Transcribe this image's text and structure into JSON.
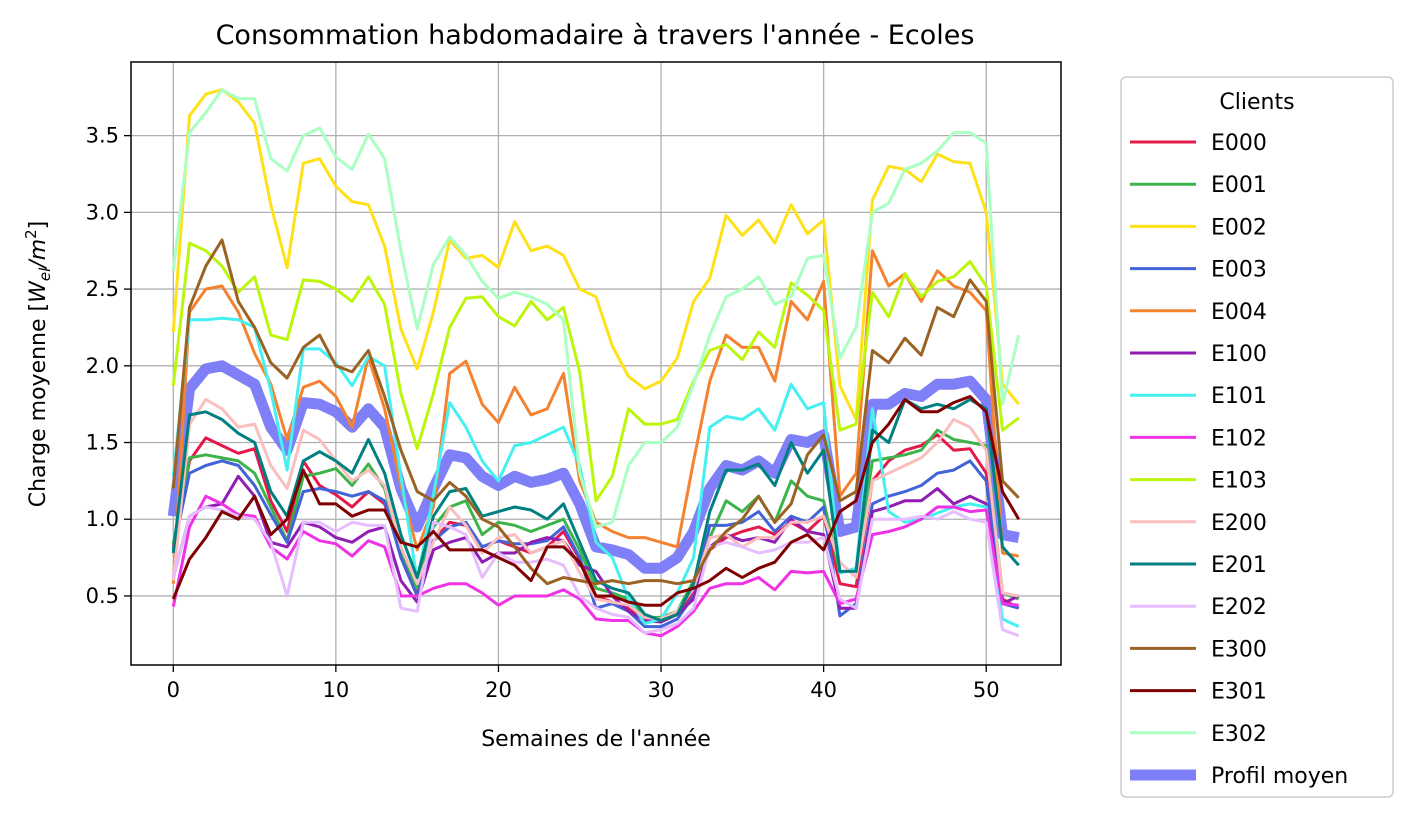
{
  "chart_data": {
    "type": "line",
    "title": "Consommation habdomadaire à travers l'année - Ecoles",
    "xlabel": "Semaines de l'année",
    "ylabel_main": "Charge moyenne [",
    "ylabel_W": "W",
    "ylabel_el": "el",
    "ylabel_m": "/m",
    "ylabel_sup": "2",
    "ylabel_end": "]",
    "xlim": [
      -2.6,
      54.6
    ],
    "ylim": [
      0.05,
      3.98
    ],
    "xticks": [
      0,
      10,
      20,
      30,
      40,
      50
    ],
    "xtick_labels": [
      "0",
      "10",
      "20",
      "30",
      "40",
      "50"
    ],
    "yticks": [
      0.5,
      1.0,
      1.5,
      2.0,
      2.5,
      3.0,
      3.5
    ],
    "ytick_labels": [
      "0.5",
      "1.0",
      "1.5",
      "2.0",
      "2.5",
      "3.0",
      "3.5"
    ],
    "grid": true,
    "legend": {
      "title": "Clients",
      "placement": "outside-right"
    },
    "x": [
      0,
      1,
      2,
      3,
      4,
      5,
      6,
      7,
      8,
      9,
      10,
      11,
      12,
      13,
      14,
      15,
      16,
      17,
      18,
      19,
      20,
      21,
      22,
      23,
      24,
      25,
      26,
      27,
      28,
      29,
      30,
      31,
      32,
      33,
      34,
      35,
      36,
      37,
      38,
      39,
      40,
      41,
      42,
      43,
      44,
      45,
      46,
      47,
      48,
      49,
      50,
      51,
      52
    ],
    "series": [
      {
        "name": "E000",
        "color": "#e6194b",
        "width": 1.5,
        "values": [
          0.82,
          1.38,
          1.53,
          1.48,
          1.43,
          1.46,
          1.12,
          0.92,
          1.38,
          1.22,
          1.16,
          1.08,
          1.18,
          1.1,
          0.78,
          0.52,
          0.86,
          0.98,
          0.96,
          0.82,
          0.86,
          0.82,
          0.78,
          0.82,
          0.92,
          0.74,
          0.5,
          0.46,
          0.42,
          0.36,
          0.35,
          0.38,
          0.52,
          0.8,
          0.88,
          0.92,
          0.95,
          0.9,
          0.98,
          0.92,
          1.02,
          0.58,
          0.56,
          1.25,
          1.38,
          1.45,
          1.48,
          1.55,
          1.45,
          1.46,
          1.3,
          0.48,
          0.42
        ]
      },
      {
        "name": "E001",
        "color": "#3cb44b",
        "width": 1.5,
        "values": [
          0.84,
          1.4,
          1.42,
          1.4,
          1.38,
          1.3,
          1.08,
          0.86,
          1.28,
          1.3,
          1.33,
          1.22,
          1.36,
          1.2,
          0.8,
          0.55,
          0.95,
          1.08,
          1.12,
          0.9,
          0.98,
          0.96,
          0.92,
          0.96,
          1.0,
          0.8,
          0.55,
          0.52,
          0.48,
          0.36,
          0.36,
          0.4,
          0.6,
          0.88,
          1.12,
          1.05,
          1.15,
          0.98,
          1.25,
          1.15,
          1.12,
          0.65,
          0.68,
          1.38,
          1.4,
          1.42,
          1.45,
          1.58,
          1.52,
          1.5,
          1.48,
          0.52,
          0.48
        ]
      },
      {
        "name": "E002",
        "color": "#ffe119",
        "width": 1.5,
        "values": [
          2.22,
          3.63,
          3.77,
          3.8,
          3.72,
          3.58,
          3.05,
          2.64,
          3.32,
          3.35,
          3.17,
          3.07,
          3.05,
          2.78,
          2.24,
          1.98,
          2.35,
          2.82,
          2.7,
          2.72,
          2.64,
          2.94,
          2.75,
          2.78,
          2.72,
          2.5,
          2.45,
          2.13,
          1.93,
          1.85,
          1.9,
          2.05,
          2.42,
          2.57,
          2.98,
          2.85,
          2.95,
          2.8,
          3.05,
          2.86,
          2.95,
          1.87,
          1.65,
          3.08,
          3.3,
          3.28,
          3.2,
          3.38,
          3.33,
          3.32,
          3.0,
          1.88,
          1.75
        ]
      },
      {
        "name": "E003",
        "color": "#4363d8",
        "width": 1.5,
        "values": [
          0.8,
          1.3,
          1.35,
          1.38,
          1.35,
          1.22,
          1.03,
          0.85,
          1.18,
          1.2,
          1.18,
          1.15,
          1.18,
          1.12,
          0.75,
          0.5,
          0.86,
          0.95,
          0.98,
          0.82,
          0.86,
          0.84,
          0.84,
          0.86,
          0.95,
          0.75,
          0.42,
          0.45,
          0.4,
          0.3,
          0.3,
          0.35,
          0.5,
          0.96,
          0.96,
          0.98,
          1.05,
          0.92,
          1.02,
          0.98,
          1.08,
          0.37,
          0.45,
          1.1,
          1.15,
          1.18,
          1.22,
          1.3,
          1.32,
          1.38,
          1.25,
          0.45,
          0.42
        ]
      },
      {
        "name": "E004",
        "color": "#f58231",
        "width": 1.5,
        "values": [
          0.58,
          2.35,
          2.5,
          2.52,
          2.35,
          2.08,
          1.88,
          1.52,
          1.86,
          1.9,
          1.8,
          1.6,
          2.06,
          1.72,
          1.22,
          0.8,
          1.08,
          1.95,
          2.03,
          1.75,
          1.63,
          1.86,
          1.68,
          1.72,
          1.95,
          1.25,
          0.98,
          0.92,
          0.88,
          0.88,
          0.85,
          0.82,
          1.38,
          1.9,
          2.2,
          2.12,
          2.12,
          1.9,
          2.42,
          2.3,
          2.55,
          1.15,
          1.3,
          2.75,
          2.52,
          2.6,
          2.42,
          2.62,
          2.52,
          2.48,
          2.36,
          0.78,
          0.76
        ]
      },
      {
        "name": "E100",
        "color": "#911eb4",
        "width": 1.5,
        "values": [
          0.62,
          1.02,
          1.08,
          1.1,
          1.28,
          1.15,
          0.85,
          0.82,
          0.98,
          0.95,
          0.88,
          0.85,
          0.92,
          0.95,
          0.6,
          0.46,
          0.8,
          0.85,
          0.88,
          0.72,
          0.78,
          0.78,
          0.85,
          0.88,
          0.86,
          0.7,
          0.66,
          0.5,
          0.4,
          0.34,
          0.33,
          0.38,
          0.48,
          0.82,
          0.9,
          0.86,
          0.88,
          0.85,
          1.0,
          0.92,
          0.9,
          0.42,
          0.42,
          1.05,
          1.08,
          1.12,
          1.12,
          1.2,
          1.1,
          1.15,
          1.1,
          0.45,
          0.5
        ]
      },
      {
        "name": "E101",
        "color": "#46f0f0",
        "width": 1.5,
        "values": [
          1.28,
          2.3,
          2.3,
          2.31,
          2.3,
          2.25,
          1.84,
          1.32,
          2.11,
          2.11,
          2.02,
          1.87,
          2.06,
          2.0,
          1.28,
          0.6,
          1.16,
          1.76,
          1.6,
          1.38,
          1.25,
          1.48,
          1.5,
          1.55,
          1.6,
          1.35,
          0.85,
          0.75,
          0.48,
          0.32,
          0.35,
          0.52,
          0.75,
          1.6,
          1.67,
          1.65,
          1.72,
          1.58,
          1.88,
          1.72,
          1.76,
          0.65,
          0.68,
          1.72,
          1.05,
          0.98,
          1.0,
          1.04,
          1.08,
          1.1,
          1.08,
          0.35,
          0.3
        ]
      },
      {
        "name": "E102",
        "color": "#f032e6",
        "width": 1.5,
        "values": [
          0.43,
          0.95,
          1.15,
          1.1,
          1.03,
          1.02,
          0.82,
          0.74,
          0.92,
          0.86,
          0.84,
          0.76,
          0.86,
          0.82,
          0.5,
          0.5,
          0.55,
          0.58,
          0.58,
          0.52,
          0.44,
          0.5,
          0.5,
          0.5,
          0.54,
          0.48,
          0.35,
          0.34,
          0.34,
          0.26,
          0.24,
          0.3,
          0.4,
          0.55,
          0.58,
          0.58,
          0.62,
          0.54,
          0.66,
          0.65,
          0.66,
          0.45,
          0.48,
          0.9,
          0.92,
          0.95,
          1.0,
          1.08,
          1.08,
          1.05,
          1.06,
          0.45,
          0.44
        ]
      },
      {
        "name": "E103",
        "color": "#bcf60c",
        "width": 1.5,
        "values": [
          1.87,
          2.8,
          2.75,
          2.65,
          2.48,
          2.58,
          2.2,
          2.17,
          2.56,
          2.55,
          2.5,
          2.42,
          2.58,
          2.4,
          1.82,
          1.46,
          1.82,
          2.25,
          2.44,
          2.45,
          2.32,
          2.26,
          2.42,
          2.3,
          2.38,
          1.96,
          1.12,
          1.28,
          1.72,
          1.62,
          1.62,
          1.65,
          1.9,
          2.1,
          2.14,
          2.04,
          2.22,
          2.12,
          2.54,
          2.46,
          2.36,
          1.58,
          1.62,
          2.48,
          2.32,
          2.6,
          2.45,
          2.55,
          2.58,
          2.68,
          2.52,
          1.58,
          1.66
        ]
      },
      {
        "name": "E200",
        "color": "#fabebe",
        "width": 1.5,
        "values": [
          0.6,
          1.62,
          1.78,
          1.72,
          1.6,
          1.62,
          1.35,
          1.2,
          1.58,
          1.52,
          1.38,
          1.25,
          1.32,
          1.22,
          0.82,
          0.58,
          0.85,
          1.08,
          0.96,
          0.78,
          0.88,
          0.9,
          0.78,
          0.82,
          0.86,
          0.65,
          0.48,
          0.46,
          0.44,
          0.36,
          0.35,
          0.4,
          0.55,
          0.88,
          0.9,
          0.82,
          0.88,
          0.88,
          0.98,
          0.98,
          1.02,
          0.72,
          0.62,
          1.25,
          1.3,
          1.35,
          1.4,
          1.5,
          1.65,
          1.6,
          1.45,
          0.52,
          0.5
        ]
      },
      {
        "name": "E201",
        "color": "#008080",
        "width": 1.5,
        "values": [
          0.78,
          1.68,
          1.7,
          1.65,
          1.56,
          1.5,
          1.18,
          1.02,
          1.38,
          1.44,
          1.38,
          1.3,
          1.52,
          1.3,
          0.9,
          0.62,
          1.02,
          1.18,
          1.2,
          1.02,
          1.05,
          1.08,
          1.06,
          1.0,
          1.1,
          0.85,
          0.6,
          0.55,
          0.52,
          0.38,
          0.34,
          0.38,
          0.58,
          1.05,
          1.32,
          1.32,
          1.36,
          1.22,
          1.5,
          1.3,
          1.45,
          0.66,
          0.66,
          1.58,
          1.5,
          1.78,
          1.72,
          1.75,
          1.72,
          1.78,
          1.72,
          0.82,
          0.7
        ]
      },
      {
        "name": "E202",
        "color": "#e6beff",
        "width": 1.5,
        "values": [
          0.62,
          1.02,
          1.08,
          1.06,
          1.02,
          1.0,
          0.85,
          0.5,
          0.98,
          0.98,
          0.92,
          0.98,
          0.96,
          0.96,
          0.42,
          0.4,
          0.98,
          0.95,
          0.9,
          0.62,
          0.78,
          0.72,
          0.72,
          0.74,
          0.7,
          0.5,
          0.42,
          0.38,
          0.36,
          0.26,
          0.28,
          0.32,
          0.42,
          0.82,
          0.85,
          0.82,
          0.78,
          0.8,
          0.85,
          0.85,
          0.88,
          0.48,
          0.42,
          1.0,
          1.0,
          1.0,
          1.02,
          1.0,
          1.05,
          1.0,
          0.98,
          0.28,
          0.24
        ]
      },
      {
        "name": "E300",
        "color": "#9a6324",
        "width": 1.5,
        "values": [
          1.2,
          2.38,
          2.65,
          2.82,
          2.42,
          2.25,
          2.02,
          1.92,
          2.12,
          2.2,
          2.0,
          1.96,
          2.1,
          1.8,
          1.45,
          1.18,
          1.12,
          1.24,
          1.15,
          1.0,
          0.95,
          0.82,
          0.68,
          0.58,
          0.62,
          0.6,
          0.58,
          0.6,
          0.58,
          0.6,
          0.6,
          0.58,
          0.6,
          0.8,
          0.92,
          1.0,
          1.15,
          0.98,
          1.1,
          1.42,
          1.55,
          1.12,
          1.18,
          2.1,
          2.02,
          2.18,
          2.07,
          2.38,
          2.32,
          2.56,
          2.42,
          1.25,
          1.14
        ]
      },
      {
        "name": "E301",
        "color": "#800000",
        "width": 1.5,
        "values": [
          0.48,
          0.74,
          0.88,
          1.05,
          1.0,
          1.15,
          0.9,
          1.0,
          1.32,
          1.1,
          1.1,
          1.02,
          1.06,
          1.06,
          0.85,
          0.82,
          0.92,
          0.8,
          0.8,
          0.8,
          0.75,
          0.7,
          0.6,
          0.82,
          0.82,
          0.72,
          0.5,
          0.5,
          0.46,
          0.44,
          0.44,
          0.52,
          0.55,
          0.6,
          0.68,
          0.62,
          0.68,
          0.72,
          0.85,
          0.9,
          0.8,
          1.05,
          1.12,
          1.5,
          1.62,
          1.78,
          1.7,
          1.7,
          1.76,
          1.8,
          1.7,
          1.18,
          1.0
        ]
      },
      {
        "name": "E302",
        "color": "#aaffc3",
        "width": 1.5,
        "values": [
          2.62,
          3.52,
          3.65,
          3.8,
          3.74,
          3.74,
          3.35,
          3.27,
          3.5,
          3.55,
          3.36,
          3.28,
          3.51,
          3.35,
          2.75,
          2.24,
          2.66,
          2.84,
          2.72,
          2.55,
          2.44,
          2.48,
          2.45,
          2.4,
          2.3,
          1.3,
          0.95,
          0.98,
          1.35,
          1.5,
          1.5,
          1.6,
          1.88,
          2.2,
          2.45,
          2.5,
          2.58,
          2.4,
          2.45,
          2.7,
          2.72,
          2.05,
          2.25,
          3.0,
          3.06,
          3.28,
          3.32,
          3.4,
          3.52,
          3.52,
          3.45,
          1.75,
          2.2
        ]
      },
      {
        "name": "Profil moyen",
        "color": "#7f7ff7",
        "width": 6,
        "values": [
          1.02,
          1.85,
          1.98,
          2.0,
          1.94,
          1.88,
          1.6,
          1.45,
          1.76,
          1.75,
          1.7,
          1.6,
          1.72,
          1.6,
          1.2,
          0.95,
          1.2,
          1.42,
          1.4,
          1.28,
          1.22,
          1.28,
          1.24,
          1.26,
          1.3,
          1.1,
          0.82,
          0.8,
          0.77,
          0.68,
          0.68,
          0.75,
          0.92,
          1.2,
          1.35,
          1.32,
          1.38,
          1.3,
          1.52,
          1.5,
          1.55,
          0.92,
          0.95,
          1.75,
          1.75,
          1.82,
          1.8,
          1.88,
          1.88,
          1.9,
          1.78,
          0.9,
          0.88
        ]
      }
    ]
  }
}
